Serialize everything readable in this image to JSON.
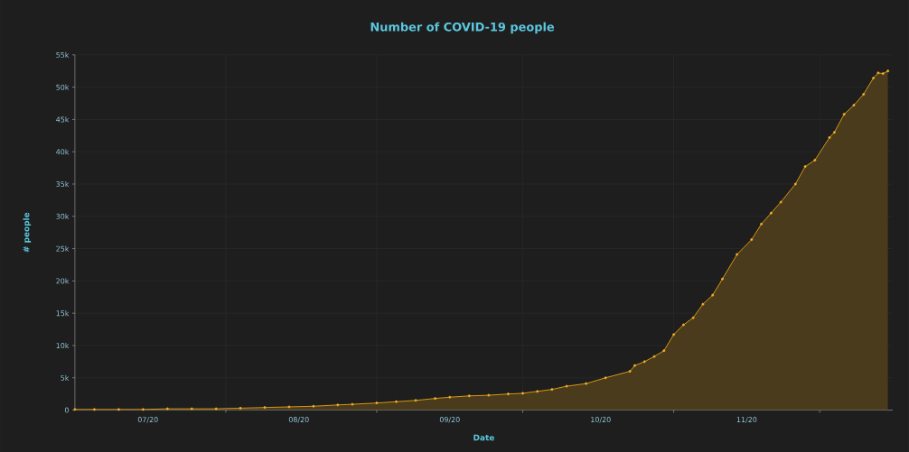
{
  "chart_data": {
    "type": "area",
    "title": "Number of COVID-19 people",
    "xlabel": "Date",
    "ylabel": "# people",
    "x": [
      "2020-07-01",
      "2020-07-05",
      "2020-07-10",
      "2020-07-15",
      "2020-07-20",
      "2020-07-25",
      "2020-07-30",
      "2020-08-04",
      "2020-08-09",
      "2020-08-14",
      "2020-08-19",
      "2020-08-24",
      "2020-08-27",
      "2020-09-01",
      "2020-09-05",
      "2020-09-09",
      "2020-09-13",
      "2020-09-16",
      "2020-09-20",
      "2020-09-24",
      "2020-09-28",
      "2020-10-01",
      "2020-10-04",
      "2020-10-07",
      "2020-10-10",
      "2020-10-14",
      "2020-10-18",
      "2020-10-23",
      "2020-10-24",
      "2020-10-26",
      "2020-10-28",
      "2020-10-30",
      "2020-11-01",
      "2020-11-03",
      "2020-11-05",
      "2020-11-07",
      "2020-11-09",
      "2020-11-11",
      "2020-11-14",
      "2020-11-17",
      "2020-11-19",
      "2020-11-21",
      "2020-11-23",
      "2020-11-26",
      "2020-11-28",
      "2020-11-30",
      "2020-12-03",
      "2020-12-04",
      "2020-12-06",
      "2020-12-08",
      "2020-12-10",
      "2020-12-12",
      "2020-12-13",
      "2020-12-14",
      "2020-12-15"
    ],
    "series": [
      {
        "color": "#e8a317",
        "values": [
          100,
          100,
          100,
          100,
          200,
          200,
          200,
          300,
          400,
          500,
          600,
          800,
          900,
          1100,
          1300,
          1500,
          1800,
          2000,
          2200,
          2300,
          2500,
          2600,
          2900,
          3200,
          3700,
          4100,
          5000,
          6000,
          6900,
          7500,
          8300,
          9200,
          11700,
          13200,
          14300,
          16400,
          17800,
          20300,
          24100,
          26400,
          28800,
          30500,
          32200,
          35000,
          37700,
          38700,
          42200,
          43000,
          45800,
          47200,
          48900,
          51400,
          52200,
          52100,
          52500
        ]
      }
    ],
    "xlim": [
      "2020-07-01",
      "2020-12-16"
    ],
    "xticks": [
      {
        "value": "2020-07-16",
        "label": "07/20"
      },
      {
        "value": "2020-08-01",
        "label": null
      },
      {
        "value": "2020-08-16",
        "label": "08/20"
      },
      {
        "value": "2020-09-01",
        "label": null
      },
      {
        "value": "2020-09-16",
        "label": "09/20"
      },
      {
        "value": "2020-10-01",
        "label": null
      },
      {
        "value": "2020-10-17",
        "label": "10/20"
      },
      {
        "value": "2020-11-01",
        "label": null
      },
      {
        "value": "2020-11-16",
        "label": "11/20"
      },
      {
        "value": "2020-12-01",
        "label": null
      }
    ],
    "ylim": [
      0,
      55000
    ],
    "yticks": [
      0,
      {
        "value": 5000,
        "label": "5k"
      },
      {
        "value": 10000,
        "label": "10k"
      },
      {
        "value": 15000,
        "label": "15k"
      },
      {
        "value": 20000,
        "label": "20k"
      },
      {
        "value": 25000,
        "label": "25k"
      },
      {
        "value": 30000,
        "label": "30k"
      },
      {
        "value": 35000,
        "label": "35k"
      },
      {
        "value": 40000,
        "label": "40k"
      },
      {
        "value": 45000,
        "label": "45k"
      },
      {
        "value": 50000,
        "label": "50k"
      },
      {
        "value": 55000,
        "label": "55k"
      }
    ],
    "grid": true,
    "marker": "circle",
    "line_style": "solid"
  }
}
